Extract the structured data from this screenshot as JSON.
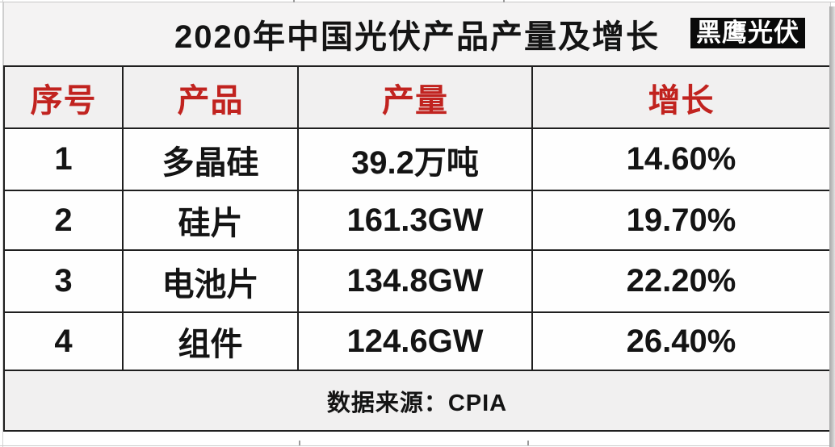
{
  "header": {
    "title": "2020年中国光伏产品产量及增长",
    "brand_badge": "黑鹰光伏"
  },
  "chart_data": {
    "type": "table",
    "title": "2020年中国光伏产品产量及增长",
    "columns": [
      "序号",
      "产品",
      "产量",
      "增长"
    ],
    "rows": [
      [
        "1",
        "多晶硅",
        "39.2万吨",
        "14.60%"
      ],
      [
        "2",
        "硅片",
        "161.3GW",
        "19.70%"
      ],
      [
        "3",
        "电池片",
        "134.8GW",
        "22.20%"
      ],
      [
        "4",
        "组件",
        "124.6GW",
        "26.40%"
      ]
    ],
    "products": [
      {
        "name": "多晶硅",
        "output_value": 39.2,
        "output_unit": "万吨",
        "growth_pct": 14.6
      },
      {
        "name": "硅片",
        "output_value": 161.3,
        "output_unit": "GW",
        "growth_pct": 19.7
      },
      {
        "name": "电池片",
        "output_value": 134.8,
        "output_unit": "GW",
        "growth_pct": 22.2
      },
      {
        "name": "组件",
        "output_value": 124.6,
        "output_unit": "GW",
        "growth_pct": 26.4
      }
    ],
    "source_note": "数据来源：CPIA"
  },
  "colors": {
    "header_text": "#c1231f",
    "shaded_row_bg": "#f1f0f0",
    "data_row_bg": "#fefefe",
    "table_border": "#1f1f1f",
    "badge_bg": "#0a0a0a",
    "badge_text": "#ffffff"
  }
}
